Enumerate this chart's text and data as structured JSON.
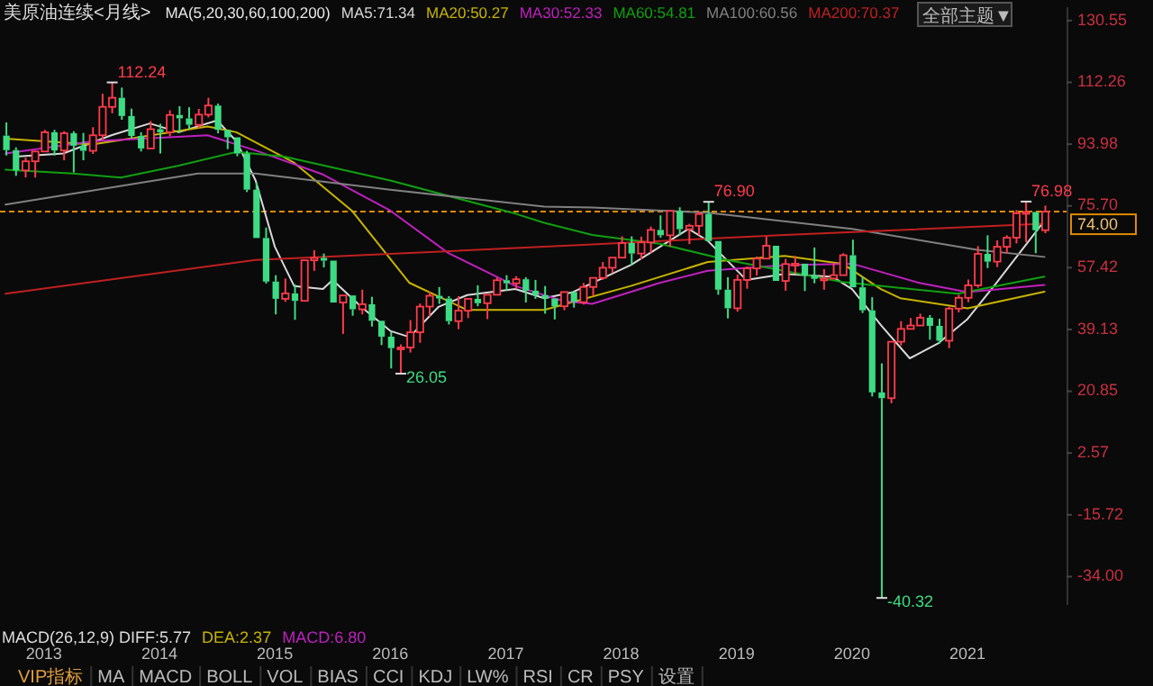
{
  "chart_data": {
    "type": "candlestick",
    "title": "美原油连续<月线>",
    "xlim": [
      "2012-08-14",
      "2021-11-10"
    ],
    "xticks": [
      {
        "value": "2013-01",
        "label": "2013"
      },
      {
        "value": "2014-01",
        "label": "2014"
      },
      {
        "value": "2015-01",
        "label": "2015"
      },
      {
        "value": "2016-01",
        "label": "2016"
      },
      {
        "value": "2017-01",
        "label": "2017"
      },
      {
        "value": "2018-01",
        "label": "2018"
      },
      {
        "value": "2019-01",
        "label": "2019"
      },
      {
        "value": "2020-01",
        "label": "2020"
      },
      {
        "value": "2021-01",
        "label": "2021"
      }
    ],
    "ylim": [
      -42.4,
      134.5
    ],
    "yticks": [
      130.55,
      112.26,
      93.98,
      {
        "value": 75.7,
        "label": "75.70"
      },
      57.42,
      39.13,
      20.85,
      2.57,
      -15.72,
      {
        "value": -34,
        "label": "-34.00"
      }
    ],
    "x": [
      "2012-09",
      "2012-10",
      "2012-11",
      "2012-12",
      "2013-01",
      "2013-02",
      "2013-03",
      "2013-04",
      "2013-05",
      "2013-06",
      "2013-07",
      "2013-08",
      "2013-09",
      "2013-10",
      "2013-11",
      "2013-12",
      "2014-01",
      "2014-02",
      "2014-03",
      "2014-04",
      "2014-05",
      "2014-06",
      "2014-07",
      "2014-08",
      "2014-09",
      "2014-10",
      "2014-11",
      "2014-12",
      "2015-01",
      "2015-02",
      "2015-03",
      "2015-04",
      "2015-05",
      "2015-06",
      "2015-07",
      "2015-08",
      "2015-09",
      "2015-10",
      "2015-11",
      "2015-12",
      "2016-01",
      "2016-02",
      "2016-03",
      "2016-04",
      "2016-05",
      "2016-06",
      "2016-07",
      "2016-08",
      "2016-09",
      "2016-10",
      "2016-11",
      "2016-12",
      "2017-01",
      "2017-02",
      "2017-03",
      "2017-04",
      "2017-05",
      "2017-06",
      "2017-07",
      "2017-08",
      "2017-09",
      "2017-10",
      "2017-11",
      "2017-12",
      "2018-01",
      "2018-02",
      "2018-03",
      "2018-04",
      "2018-05",
      "2018-06",
      "2018-07",
      "2018-08",
      "2018-09",
      "2018-10",
      "2018-11",
      "2018-12",
      "2019-01",
      "2019-02",
      "2019-03",
      "2019-04",
      "2019-05",
      "2019-06",
      "2019-07",
      "2019-08",
      "2019-09",
      "2019-10",
      "2019-11",
      "2019-12",
      "2020-01",
      "2020-02",
      "2020-03",
      "2020-04",
      "2020-05",
      "2020-06",
      "2020-07",
      "2020-08",
      "2020-09",
      "2020-10",
      "2020-11",
      "2020-12",
      "2021-01",
      "2021-02",
      "2021-03",
      "2021-04",
      "2021-05",
      "2021-06",
      "2021-07",
      "2021-08",
      "2021-09"
    ],
    "ohlc": [
      [
        96.5,
        100.4,
        90.6,
        92.2
      ],
      [
        92.2,
        93.0,
        84.6,
        86.2
      ],
      [
        86.2,
        90.0,
        84.1,
        88.9
      ],
      [
        88.9,
        92.0,
        84.1,
        91.8
      ],
      [
        91.8,
        98.2,
        91.4,
        97.5
      ],
      [
        97.5,
        98.2,
        90.6,
        92.1
      ],
      [
        92.1,
        97.8,
        89.2,
        97.2
      ],
      [
        97.2,
        97.8,
        85.6,
        93.5
      ],
      [
        93.5,
        97.3,
        89.2,
        92.0
      ],
      [
        92.0,
        99.0,
        91.1,
        96.6
      ],
      [
        96.6,
        108.9,
        95.2,
        105.0
      ],
      [
        105.0,
        112.24,
        103.1,
        107.7
      ],
      [
        107.7,
        110.7,
        101.2,
        102.3
      ],
      [
        102.3,
        104.5,
        95.7,
        96.4
      ],
      [
        96.4,
        97.5,
        91.8,
        92.7
      ],
      [
        92.7,
        100.8,
        92.5,
        98.4
      ],
      [
        98.4,
        100.0,
        91.2,
        97.5
      ],
      [
        97.5,
        104.0,
        96.3,
        102.6
      ],
      [
        102.6,
        105.2,
        97.4,
        101.6
      ],
      [
        101.6,
        104.9,
        98.4,
        99.7
      ],
      [
        99.7,
        104.4,
        98.7,
        102.7
      ],
      [
        102.7,
        107.7,
        101.9,
        105.4
      ],
      [
        105.4,
        106.0,
        97.2,
        98.2
      ],
      [
        98.2,
        98.6,
        92.5,
        96.0
      ],
      [
        96.0,
        96.3,
        90.4,
        91.2
      ],
      [
        91.2,
        92.0,
        79.8,
        80.5
      ],
      [
        80.5,
        82.6,
        65.7,
        66.2
      ],
      [
        66.2,
        69.3,
        52.7,
        53.3
      ],
      [
        53.3,
        55.2,
        43.6,
        48.2
      ],
      [
        48.2,
        54.2,
        47.3,
        49.8
      ],
      [
        49.8,
        52.5,
        42.0,
        47.6
      ],
      [
        47.6,
        59.9,
        47.1,
        59.6
      ],
      [
        59.6,
        62.6,
        56.5,
        60.3
      ],
      [
        60.3,
        61.6,
        57.5,
        59.5
      ],
      [
        59.5,
        59.7,
        46.7,
        47.1
      ],
      [
        47.1,
        49.3,
        37.8,
        49.2
      ],
      [
        49.2,
        49.3,
        43.2,
        45.1
      ],
      [
        45.1,
        50.9,
        43.6,
        46.6
      ],
      [
        46.6,
        48.8,
        40.0,
        41.7
      ],
      [
        41.7,
        42.0,
        34.5,
        37.0
      ],
      [
        37.0,
        38.4,
        27.6,
        33.6
      ],
      [
        33.6,
        34.7,
        26.05,
        33.8
      ],
      [
        33.8,
        41.9,
        32.3,
        38.3
      ],
      [
        38.3,
        46.8,
        35.2,
        45.9
      ],
      [
        45.9,
        50.2,
        43.0,
        49.1
      ],
      [
        49.1,
        51.7,
        46.7,
        48.3
      ],
      [
        48.3,
        49.0,
        40.6,
        41.6
      ],
      [
        41.6,
        49.0,
        39.2,
        44.7
      ],
      [
        44.7,
        48.4,
        42.5,
        48.2
      ],
      [
        48.2,
        52.2,
        46.0,
        46.9
      ],
      [
        46.9,
        49.9,
        42.2,
        49.4
      ],
      [
        49.4,
        54.5,
        49.4,
        53.7
      ],
      [
        53.7,
        55.2,
        50.7,
        52.8
      ],
      [
        52.8,
        54.9,
        51.2,
        54.0
      ],
      [
        54.0,
        54.6,
        47.1,
        50.6
      ],
      [
        50.6,
        53.8,
        48.2,
        49.3
      ],
      [
        49.3,
        52.0,
        43.8,
        48.3
      ],
      [
        48.3,
        48.8,
        42.1,
        46.0
      ],
      [
        46.0,
        50.4,
        44.8,
        50.2
      ],
      [
        50.2,
        50.2,
        45.6,
        47.2
      ],
      [
        47.2,
        52.9,
        46.5,
        51.7
      ],
      [
        51.7,
        54.9,
        49.1,
        54.4
      ],
      [
        54.4,
        59.1,
        53.8,
        57.4
      ],
      [
        57.4,
        60.5,
        55.8,
        60.4
      ],
      [
        60.4,
        66.7,
        59.9,
        64.7
      ],
      [
        64.7,
        66.7,
        58.1,
        61.6
      ],
      [
        61.6,
        66.6,
        59.9,
        64.9
      ],
      [
        64.9,
        69.6,
        61.8,
        68.6
      ],
      [
        68.6,
        72.9,
        66.3,
        67.0
      ],
      [
        67.0,
        74.5,
        63.6,
        74.2
      ],
      [
        74.2,
        75.3,
        67.0,
        68.8
      ],
      [
        68.8,
        70.4,
        64.4,
        69.8
      ],
      [
        69.8,
        74.0,
        67.0,
        73.3
      ],
      [
        73.3,
        76.9,
        64.9,
        65.3
      ],
      [
        65.3,
        65.4,
        49.4,
        50.9
      ],
      [
        50.9,
        54.6,
        42.4,
        45.4
      ],
      [
        45.4,
        55.4,
        44.4,
        53.8
      ],
      [
        53.8,
        57.8,
        51.2,
        57.2
      ],
      [
        57.2,
        60.7,
        55.1,
        60.1
      ],
      [
        60.1,
        66.6,
        60.0,
        63.9
      ],
      [
        63.9,
        63.9,
        53.0,
        53.5
      ],
      [
        53.5,
        60.0,
        50.6,
        58.5
      ],
      [
        58.5,
        60.9,
        55.6,
        58.6
      ],
      [
        58.6,
        58.8,
        50.5,
        55.1
      ],
      [
        55.1,
        63.4,
        52.8,
        54.1
      ],
      [
        54.1,
        57.0,
        50.9,
        54.2
      ],
      [
        54.2,
        58.7,
        54.0,
        55.2
      ],
      [
        55.2,
        61.7,
        55.0,
        61.1
      ],
      [
        61.1,
        65.7,
        51.3,
        51.6
      ],
      [
        51.6,
        54.7,
        44.0,
        44.8
      ],
      [
        44.8,
        48.7,
        19.3,
        20.5
      ],
      [
        20.5,
        29.1,
        -40.32,
        18.8
      ],
      [
        18.8,
        35.5,
        17.3,
        35.5
      ],
      [
        35.5,
        41.6,
        34.4,
        39.3
      ],
      [
        39.3,
        42.5,
        38.8,
        40.3
      ],
      [
        40.3,
        43.8,
        40.3,
        42.6
      ],
      [
        42.6,
        43.4,
        36.1,
        40.2
      ],
      [
        40.2,
        42.3,
        34.9,
        35.8
      ],
      [
        35.8,
        45.9,
        33.6,
        45.3
      ],
      [
        45.3,
        49.4,
        44.2,
        48.5
      ],
      [
        48.5,
        53.9,
        47.2,
        52.2
      ],
      [
        52.2,
        63.8,
        51.5,
        61.5
      ],
      [
        61.5,
        67.0,
        57.3,
        59.2
      ],
      [
        59.2,
        65.5,
        57.6,
        63.6
      ],
      [
        63.6,
        67.0,
        61.6,
        66.3
      ],
      [
        66.3,
        74.5,
        64.6,
        73.5
      ],
      [
        73.5,
        76.98,
        65.0,
        73.9
      ],
      [
        73.9,
        74.0,
        61.7,
        68.5
      ],
      [
        68.5,
        75.8,
        67.6,
        74.0
      ]
    ],
    "colors": [
      "#3ddc84",
      "#3ddc84",
      "#ff3b4b",
      "#ff3b4b",
      "#ff3b4b",
      "#3ddc84",
      "#ff3b4b",
      "#3ddc84",
      "#3ddc84",
      "#ff3b4b",
      "#ff3b4b",
      "#ff3b4b",
      "#3ddc84",
      "#3ddc84",
      "#3ddc84",
      "#ff3b4b",
      "#3ddc84",
      "#ff3b4b",
      "#3ddc84",
      "#3ddc84",
      "#ff3b4b",
      "#ff3b4b",
      "#3ddc84",
      "#3ddc84",
      "#3ddc84",
      "#3ddc84",
      "#3ddc84",
      "#3ddc84",
      "#3ddc84",
      "#ff3b4b",
      "#3ddc84",
      "#ff3b4b",
      "#ff3b4b",
      "#3ddc84",
      "#3ddc84",
      "#ff3b4b",
      "#3ddc84",
      "#ff3b4b",
      "#3ddc84",
      "#3ddc84",
      "#3ddc84",
      "#ff3b4b",
      "#ff3b4b",
      "#ff3b4b",
      "#ff3b4b",
      "#3ddc84",
      "#3ddc84",
      "#ff3b4b",
      "#ff3b4b",
      "#3ddc84",
      "#ff3b4b",
      "#ff3b4b",
      "#3ddc84",
      "#ff3b4b",
      "#3ddc84",
      "#3ddc84",
      "#3ddc84",
      "#3ddc84",
      "#ff3b4b",
      "#3ddc84",
      "#ff3b4b",
      "#ff3b4b",
      "#ff3b4b",
      "#ff3b4b",
      "#ff3b4b",
      "#3ddc84",
      "#ff3b4b",
      "#ff3b4b",
      "#3ddc84",
      "#ff3b4b",
      "#3ddc84",
      "#ff3b4b",
      "#ff3b4b",
      "#3ddc84",
      "#3ddc84",
      "#3ddc84",
      "#ff3b4b",
      "#ff3b4b",
      "#ff3b4b",
      "#ff3b4b",
      "#3ddc84",
      "#ff3b4b",
      "#ff3b4b",
      "#3ddc84",
      "#3ddc84",
      "#ff3b4b",
      "#ff3b4b",
      "#ff3b4b",
      "#3ddc84",
      "#3ddc84",
      "#3ddc84",
      "#3ddc84",
      "#ff3b4b",
      "#ff3b4b",
      "#ff3b4b",
      "#ff3b4b",
      "#3ddc84",
      "#3ddc84",
      "#ff3b4b",
      "#ff3b4b",
      "#ff3b4b",
      "#ff3b4b",
      "#3ddc84",
      "#ff3b4b",
      "#ff3b4b",
      "#ff3b4b",
      "#ff3b4b",
      "#3ddc84",
      "#ff3b4b"
    ],
    "series": [
      {
        "name": "MA5:71.34",
        "type": "line",
        "color": "#d8d8d8",
        "x": [
          "2012-10",
          "2013-03",
          "2013-08",
          "2013-12",
          "2014-03",
          "2014-07",
          "2014-09",
          "2014-11",
          "2015-01",
          "2015-03",
          "2015-06",
          "2015-07",
          "2015-10",
          "2016-01",
          "2016-03",
          "2016-06",
          "2016-09",
          "2017-02",
          "2017-05",
          "2017-08",
          "2018-02",
          "2018-08",
          "2018-10",
          "2019-02",
          "2019-06",
          "2019-11",
          "2020-01",
          "2020-04",
          "2020-07",
          "2020-10",
          "2021-01",
          "2021-04",
          "2021-09"
        ],
        "values": [
          90.3,
          91.2,
          96.6,
          100.1,
          97.5,
          101.0,
          94.8,
          83.2,
          63.6,
          52.0,
          51.1,
          53.8,
          45.8,
          38.7,
          36.9,
          45.8,
          49.3,
          51.1,
          48.4,
          50.2,
          58.2,
          68.9,
          65.4,
          53.8,
          55.6,
          54.7,
          51.1,
          40.4,
          30.6,
          35.1,
          42.2,
          52.9,
          71.3
        ]
      },
      {
        "name": "MA20:50.27",
        "type": "line",
        "color": "#c8b400",
        "x": [
          "2012-09",
          "2013-06",
          "2014-06",
          "2014-09",
          "2015-03",
          "2015-09",
          "2016-03",
          "2016-09",
          "2017-05",
          "2018-02",
          "2018-10",
          "2019-06",
          "2019-12",
          "2020-04",
          "2020-06",
          "2021-01",
          "2021-09"
        ],
        "values": [
          95.6,
          93.9,
          99.2,
          97.5,
          88.5,
          74.3,
          52.9,
          44.9,
          44.9,
          52.0,
          59.1,
          60.9,
          58.6,
          51.1,
          48.4,
          45.4,
          50.3
        ]
      },
      {
        "name": "MA30:52.33",
        "type": "line",
        "color": "#c020c0",
        "x": [
          "2012-09",
          "2013-06",
          "2014-06",
          "2014-11",
          "2015-06",
          "2016-01",
          "2016-07",
          "2017-02",
          "2017-07",
          "2017-10",
          "2018-05",
          "2018-10",
          "2019-06",
          "2020-01",
          "2020-08",
          "2021-01",
          "2021-09"
        ],
        "values": [
          91.2,
          94.8,
          96.6,
          92.1,
          85.0,
          74.3,
          61.8,
          52.0,
          47.5,
          46.7,
          52.9,
          56.5,
          58.2,
          58.6,
          52.9,
          50.2,
          52.3
        ]
      },
      {
        "name": "MA60:54.81",
        "type": "line",
        "color": "#10a010",
        "x": [
          "2012-09",
          "2013-04",
          "2013-09",
          "2014-03",
          "2014-09",
          "2015-02",
          "2016-01",
          "2017-02",
          "2017-05",
          "2017-10",
          "2018-05",
          "2018-12",
          "2019-12",
          "2020-12",
          "2021-09"
        ],
        "values": [
          86.4,
          85.3,
          84.1,
          87.6,
          91.7,
          90.3,
          83.2,
          73.4,
          70.7,
          67.1,
          64.5,
          59.7,
          53.2,
          49.7,
          54.8
        ]
      },
      {
        "name": "MA100:60.56",
        "type": "line",
        "color": "#808080",
        "x": [
          "2012-09",
          "2014-05",
          "2014-11",
          "2016-01",
          "2017-05",
          "2017-10",
          "2018-10",
          "2020-01",
          "2021-02",
          "2021-09"
        ],
        "values": [
          76.1,
          85.3,
          85.3,
          80.5,
          75.5,
          75.2,
          73.7,
          68.9,
          62.7,
          60.6
        ]
      },
      {
        "name": "MA200:70.37",
        "type": "line",
        "color": "#c02020",
        "x": [
          "2012-09",
          "2014-11",
          "2017-05",
          "2017-10",
          "2019-06",
          "2021-09"
        ],
        "values": [
          49.7,
          59.7,
          63.6,
          64.3,
          67.1,
          70.4
        ]
      }
    ],
    "legend": "top",
    "ref_lines": [
      {
        "axis": "y",
        "value": 74,
        "label": "74.00",
        "color": "#e08a00",
        "line_style": "dashed"
      }
    ],
    "annotations": [
      "MA(5,20,30,60,100,200)",
      "MACD(26,12,9) DIFF:5.77",
      "DEA:2.37",
      "MACD:6.80",
      "全部主题▼",
      "VIP指标",
      "MA",
      "MACD",
      "BOLL",
      "VOL",
      "BIAS",
      "CCI",
      "KDJ",
      "LW%",
      "RSI",
      "CR",
      "PSY",
      "设置",
      {
        "text": "112.24",
        "x": "2013-08",
        "y": 112.24
      },
      {
        "text": "26.05",
        "x": "2016-02",
        "y": 26.05
      },
      {
        "text": "76.90",
        "x": "2018-10",
        "y": 76.9
      },
      {
        "text": "-40.32",
        "x": "2020-04",
        "y": -40.32
      },
      {
        "text": "76.98",
        "x": "2021-07",
        "y": 76.98
      }
    ]
  }
}
